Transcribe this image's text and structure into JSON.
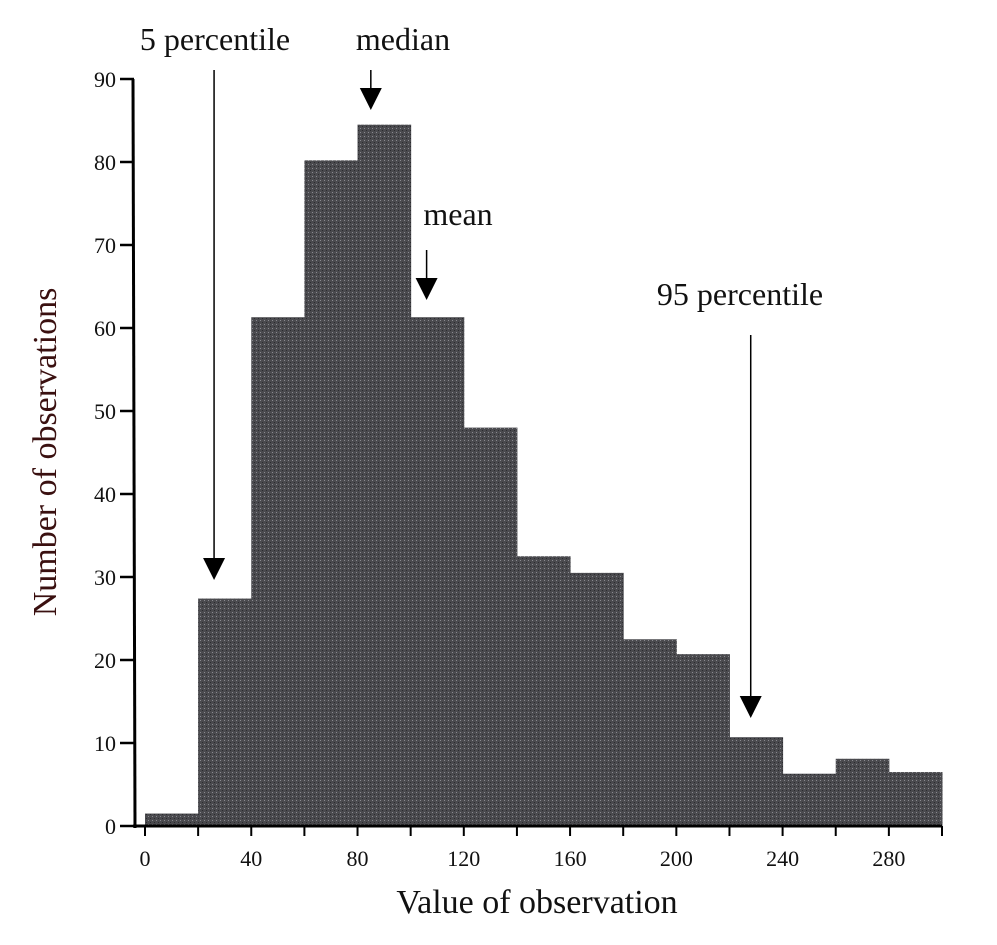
{
  "chart_data": {
    "type": "bar",
    "subtype": "histogram",
    "title": "",
    "xlabel": "Value of observation",
    "ylabel": "Number of observations",
    "xlim": [
      0,
      300
    ],
    "ylim": [
      0,
      90
    ],
    "bin_width": 20,
    "bins": [
      {
        "start": 0,
        "end": 20,
        "value": 1.5
      },
      {
        "start": 20,
        "end": 40,
        "value": 27.4
      },
      {
        "start": 40,
        "end": 60,
        "value": 61.3
      },
      {
        "start": 60,
        "end": 80,
        "value": 80.2
      },
      {
        "start": 80,
        "end": 100,
        "value": 84.5
      },
      {
        "start": 100,
        "end": 120,
        "value": 61.3
      },
      {
        "start": 120,
        "end": 140,
        "value": 48
      },
      {
        "start": 140,
        "end": 160,
        "value": 32.5
      },
      {
        "start": 160,
        "end": 180,
        "value": 30.5
      },
      {
        "start": 180,
        "end": 200,
        "value": 22.5
      },
      {
        "start": 200,
        "end": 220,
        "value": 20.7
      },
      {
        "start": 220,
        "end": 240,
        "value": 10.7
      },
      {
        "start": 240,
        "end": 260,
        "value": 6.3
      },
      {
        "start": 260,
        "end": 280,
        "value": 8.1
      },
      {
        "start": 280,
        "end": 300,
        "value": 6.5
      }
    ],
    "xticks": [
      "0",
      "40",
      "80",
      "120",
      "160",
      "200",
      "240",
      "280"
    ],
    "yticks": [
      "0",
      "10",
      "20",
      "30",
      "40",
      "50",
      "60",
      "70",
      "80",
      "90"
    ],
    "grid": false,
    "bar_color": "#4a4a4e",
    "annotations": [
      {
        "label": "5 percentile",
        "x": 26
      },
      {
        "label": "median",
        "x": 85
      },
      {
        "label": "mean",
        "x": 106
      },
      {
        "label": "95 percentile",
        "x": 228
      }
    ]
  }
}
